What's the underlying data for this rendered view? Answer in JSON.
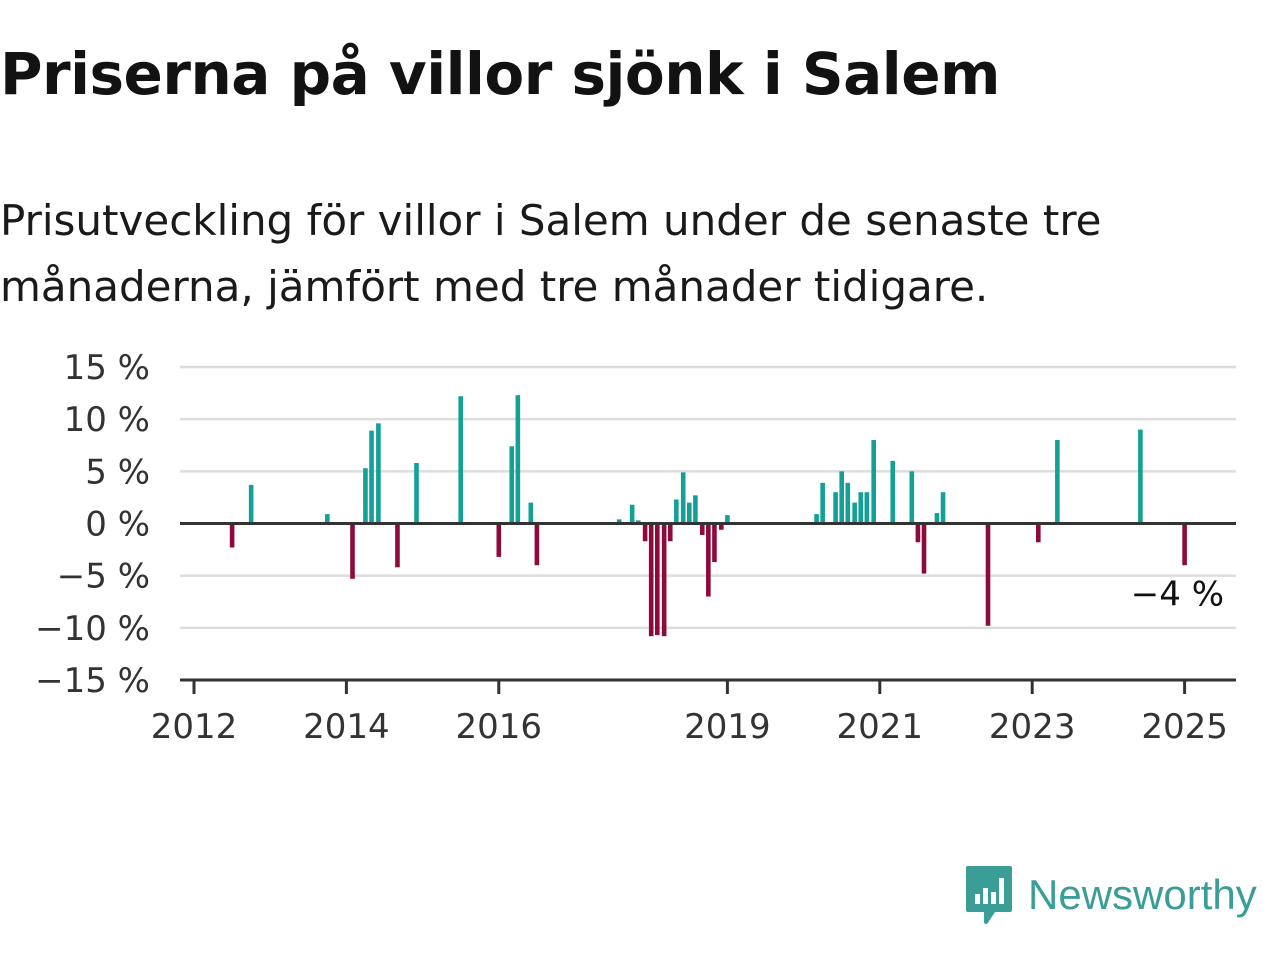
{
  "title": "Priserna på villor sjönk i Salem",
  "subtitle": "Prisutveckling för villor i Salem under de senaste tre månaderna, jämfört med tre månader tidigare.",
  "brand": {
    "name": "Newsworthy",
    "icon": "newsworthy-logo-icon",
    "color": "#3a9e96"
  },
  "colors": {
    "positive": "#13a096",
    "negative": "#8e0a3c",
    "grid": "#dddddd",
    "axis": "#333333"
  },
  "chart_data": {
    "type": "bar",
    "title": "Priserna på villor sjönk i Salem",
    "ylim": [
      -15,
      15
    ],
    "yticks": [
      15,
      10,
      5,
      0,
      -5,
      -10,
      -15
    ],
    "ytick_labels": [
      "15 %",
      "10 %",
      "5 %",
      "0 %",
      "−5 %",
      "−10 %",
      "−15 %"
    ],
    "xticks": [
      2012,
      2014,
      2016,
      2019,
      2021,
      2023,
      2025
    ],
    "xtick_labels": [
      "2012",
      "2014",
      "2016",
      "2019",
      "2021",
      "2023",
      "2025"
    ],
    "grid": true,
    "last_value_label": "−4 %",
    "x": [
      2012.5,
      2012.75,
      2013.75,
      2014.08,
      2014.25,
      2014.33,
      2014.42,
      2014.67,
      2014.92,
      2015.5,
      2016.0,
      2016.17,
      2016.25,
      2016.42,
      2016.5,
      2017.58,
      2017.75,
      2017.83,
      2017.92,
      2018.0,
      2018.08,
      2018.17,
      2018.25,
      2018.33,
      2018.42,
      2018.5,
      2018.58,
      2018.67,
      2018.75,
      2018.83,
      2018.92,
      2019.0,
      2020.17,
      2020.25,
      2020.42,
      2020.5,
      2020.58,
      2020.67,
      2020.75,
      2020.83,
      2020.92,
      2021.17,
      2021.42,
      2021.5,
      2021.58,
      2021.75,
      2021.83,
      2022.42,
      2023.08,
      2023.33,
      2024.42,
      2025.0
    ],
    "values": [
      -2.3,
      3.7,
      0.9,
      -5.3,
      5.3,
      8.9,
      9.6,
      -4.2,
      5.8,
      12.2,
      -3.2,
      7.4,
      12.3,
      2.0,
      -4.0,
      0.4,
      1.8,
      0.3,
      -1.7,
      -10.8,
      -10.7,
      -10.8,
      -1.7,
      2.3,
      4.9,
      2.0,
      2.7,
      -1.1,
      -7.0,
      -3.7,
      -0.6,
      0.8,
      0.9,
      3.9,
      3.0,
      5.0,
      3.9,
      2.0,
      3.0,
      3.0,
      8.0,
      6.0,
      5.0,
      -1.8,
      -4.8,
      1.0,
      3.0,
      -9.8,
      -1.8,
      8.0,
      9.0,
      -4.0
    ]
  }
}
